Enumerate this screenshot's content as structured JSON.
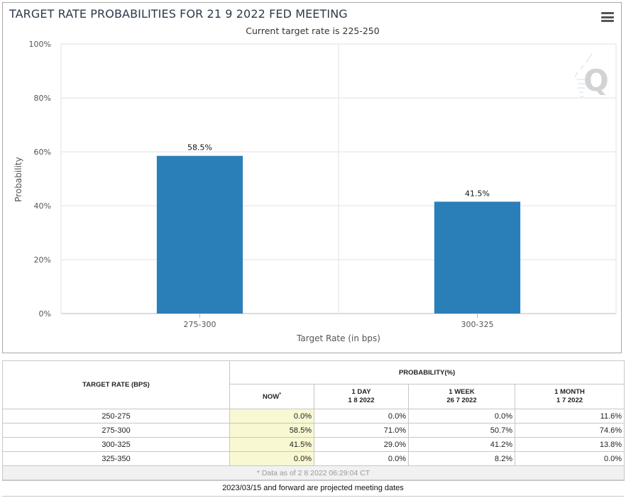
{
  "chart_data": {
    "type": "bar",
    "title": "TARGET RATE PROBABILITIES FOR 21 9 2022 FED MEETING",
    "subtitle": "Current target rate is 225-250",
    "categories": [
      "275-300",
      "300-325"
    ],
    "values": [
      58.5,
      41.5
    ],
    "data_labels": [
      "58.5%",
      "41.5%"
    ],
    "xlabel": "Target Rate (in bps)",
    "ylabel": "Probability",
    "ylim": [
      0,
      100
    ],
    "yticks": [
      0,
      20,
      40,
      60,
      80,
      100
    ],
    "ytick_labels": [
      "0%",
      "20%",
      "40%",
      "60%",
      "80%",
      "100%"
    ],
    "grid": true,
    "bar_color": "#2b7fb8"
  },
  "table": {
    "col_rate_header": "TARGET RATE (BPS)",
    "prob_header": "PROBABILITY(%)",
    "now": {
      "label": "NOW",
      "mark": "*"
    },
    "day": {
      "label": "1 DAY",
      "date": "1 8 2022"
    },
    "week": {
      "label": "1 WEEK",
      "date": "26 7 2022"
    },
    "month": {
      "label": "1 MONTH",
      "date": "1 7 2022"
    },
    "rows": [
      {
        "rate": "250-275",
        "now": "0.0%",
        "day": "0.0%",
        "week": "0.0%",
        "month": "11.6%"
      },
      {
        "rate": "275-300",
        "now": "58.5%",
        "day": "71.0%",
        "week": "50.7%",
        "month": "74.6%"
      },
      {
        "rate": "300-325",
        "now": "41.5%",
        "day": "29.0%",
        "week": "41.2%",
        "month": "13.8%"
      },
      {
        "rate": "325-350",
        "now": "0.0%",
        "day": "0.0%",
        "week": "8.2%",
        "month": "0.0%"
      }
    ],
    "note": "* Data as of 2 8 2022 06:29:04 CT"
  },
  "footer": "2023/03/15 and forward are projected meeting dates",
  "icons": {
    "menu": "hamburger-menu-icon",
    "watermark": "cme-q-logo-icon"
  }
}
